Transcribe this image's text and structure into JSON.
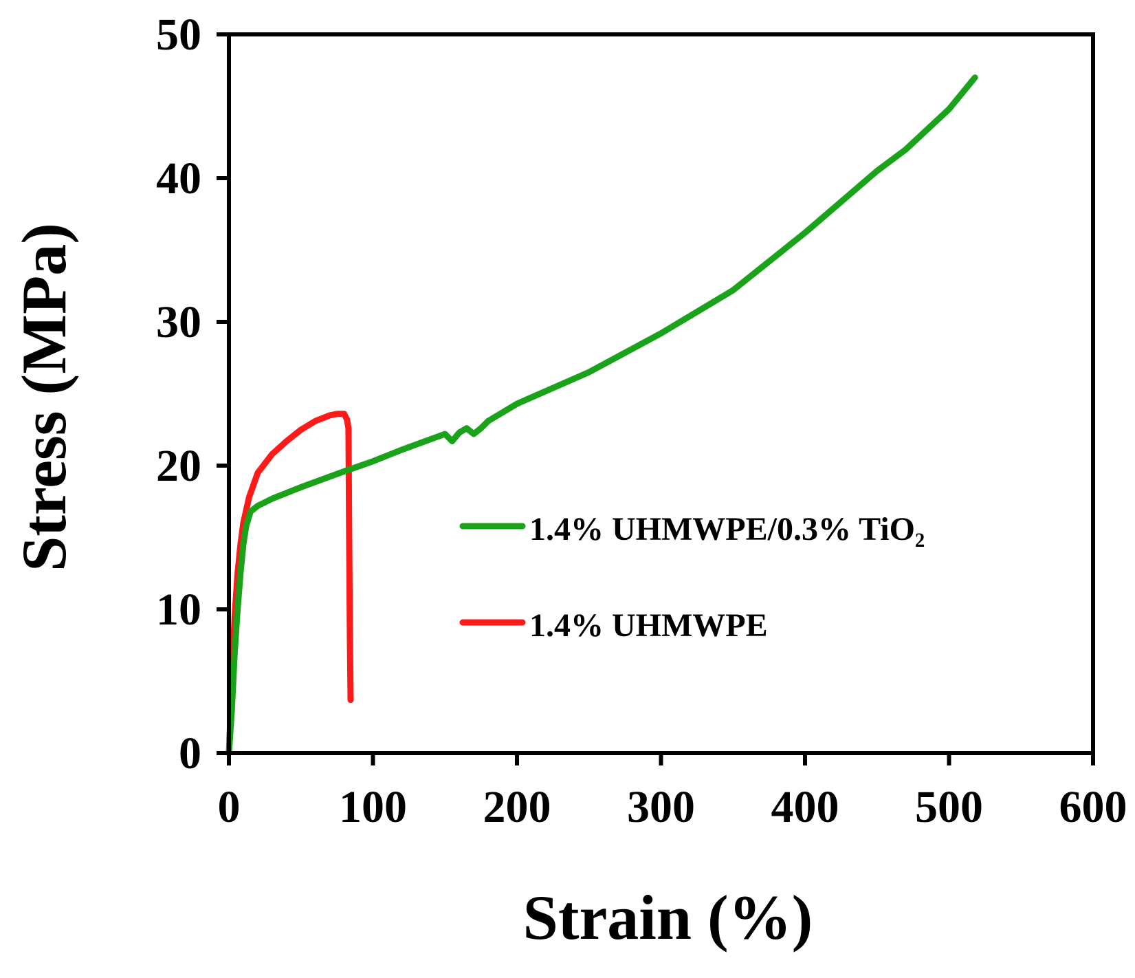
{
  "chart_data": {
    "type": "line",
    "title": "",
    "xlabel": "Strain (%)",
    "ylabel": "Stress (MPa)",
    "xlim": [
      0,
      600
    ],
    "ylim": [
      0,
      50
    ],
    "x_ticks": [
      "0",
      "100",
      "200",
      "300",
      "400",
      "500",
      "600"
    ],
    "y_ticks": [
      "0",
      "10",
      "20",
      "30",
      "40",
      "50"
    ],
    "grid": false,
    "legend_position": "right",
    "series": [
      {
        "name": "1.4% UHMWPE/0.3% TiO₂",
        "color": "#1aa31a",
        "x": [
          0,
          2,
          4,
          6,
          8,
          10,
          12,
          15,
          20,
          30,
          50,
          80,
          100,
          120,
          150,
          155,
          160,
          165,
          170,
          175,
          180,
          200,
          250,
          300,
          350,
          400,
          450,
          470,
          500,
          518
        ],
        "y": [
          0,
          3,
          7,
          10,
          12.5,
          14.5,
          15.8,
          16.8,
          17.2,
          17.7,
          18.5,
          19.6,
          20.3,
          21.1,
          22.2,
          21.7,
          22.3,
          22.6,
          22.2,
          22.6,
          23.1,
          24.3,
          26.5,
          29.2,
          32.2,
          36.2,
          40.5,
          42,
          44.8,
          47
        ]
      },
      {
        "name": "1.4% UHMWPE",
        "color": "#ff1a1a",
        "x": [
          0,
          2,
          4,
          6,
          8,
          10,
          14,
          20,
          30,
          40,
          50,
          60,
          70,
          75,
          78,
          80,
          82,
          83,
          83.5,
          84,
          84.5
        ],
        "y": [
          0,
          5,
          9.5,
          12.5,
          14.5,
          16,
          17.8,
          19.5,
          20.8,
          21.7,
          22.5,
          23.1,
          23.5,
          23.6,
          23.6,
          23.6,
          23.2,
          22.6,
          15,
          8,
          3.7
        ]
      }
    ]
  }
}
